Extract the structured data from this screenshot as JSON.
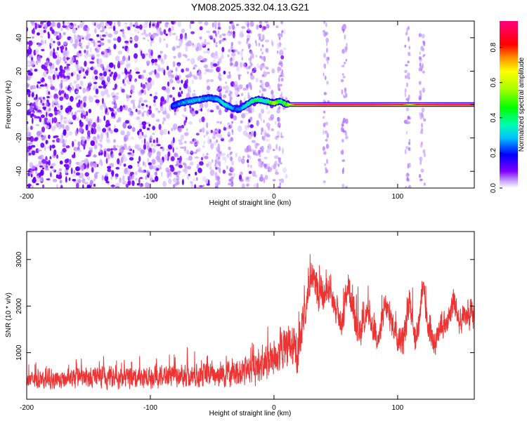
{
  "title": "YM08.2025.332.04.13.G21",
  "chart_data": [
    {
      "type": "heatmap",
      "title": "YM08.2025.332.04.13.G21",
      "xlabel": "Height of straight line (km)",
      "ylabel": "Frequency (Hz)",
      "xlim": [
        -200,
        162
      ],
      "ylim": [
        -50,
        50
      ],
      "xticks": [
        -200,
        -100,
        0,
        100
      ],
      "yticks": [
        -40,
        -20,
        0,
        20,
        40
      ],
      "colorbar": {
        "label": "Normalized spectral amplitude",
        "range": [
          0.0,
          0.95
        ],
        "ticks": [
          0.0,
          0.2,
          0.4,
          0.6,
          0.8
        ],
        "tick_labels": [
          "0.0",
          "0.2",
          "0.4",
          "0.6",
          "0.8"
        ]
      },
      "ridge": {
        "description": "dominant frequency ridge",
        "x": [
          -82,
          -75,
          -68,
          -60,
          -52,
          -45,
          -40,
          -34,
          -28,
          -22,
          -18,
          -12,
          -6,
          0,
          5,
          10,
          20,
          40,
          60,
          80,
          100,
          110,
          120,
          140,
          162
        ],
        "y": [
          -1,
          1,
          2,
          3,
          4,
          3,
          0,
          -2,
          -3,
          0,
          2,
          3,
          2,
          1,
          2,
          0,
          0,
          0,
          0,
          0,
          0,
          0,
          0,
          0,
          0
        ],
        "amplitude": [
          0.25,
          0.3,
          0.35,
          0.35,
          0.3,
          0.35,
          0.4,
          0.3,
          0.3,
          0.4,
          0.45,
          0.5,
          0.4,
          0.75,
          0.5,
          0.6,
          0.9,
          0.95,
          0.95,
          0.95,
          0.9,
          0.7,
          0.9,
          0.95,
          0.95
        ]
      },
      "noise_bands_x": [
        -45,
        -35,
        -20,
        -10,
        5,
        42,
        57,
        108,
        120
      ]
    },
    {
      "type": "line",
      "title": "",
      "xlabel": "Height of straight line (km)",
      "ylabel": "SNR (10 * v/v)",
      "xlim": [
        -200,
        162
      ],
      "ylim": [
        0,
        3600
      ],
      "xticks": [
        -200,
        -100,
        0,
        100
      ],
      "yticks": [
        1000,
        2000,
        3000
      ],
      "series": [
        {
          "name": "SNR",
          "color": "#ee3333",
          "envelope_x": [
            -200,
            -180,
            -160,
            -140,
            -120,
            -100,
            -80,
            -60,
            -40,
            -20,
            -10,
            0,
            10,
            20,
            25,
            30,
            35,
            40,
            45,
            50,
            55,
            60,
            65,
            70,
            75,
            80,
            85,
            90,
            95,
            100,
            105,
            110,
            115,
            120,
            125,
            130,
            135,
            140,
            145,
            150,
            155,
            162
          ],
          "mean": [
            420,
            400,
            440,
            480,
            460,
            470,
            500,
            520,
            560,
            620,
            720,
            900,
            1150,
            1050,
            1900,
            2650,
            2350,
            2150,
            2450,
            1900,
            1650,
            2500,
            1750,
            1450,
            1850,
            1550,
            1300,
            2000,
            1650,
            1350,
            1250,
            2100,
            1150,
            2400,
            1450,
            1200,
            1650,
            1550,
            2150,
            1600,
            1800,
            1750
          ],
          "spread": [
            250,
            260,
            270,
            300,
            300,
            320,
            330,
            360,
            400,
            450,
            500,
            600,
            650,
            700,
            500,
            450,
            550,
            500,
            450,
            450,
            500,
            450,
            550,
            450,
            400,
            450,
            450,
            450,
            400,
            450,
            500,
            450,
            450,
            500,
            400,
            400,
            450,
            400,
            450,
            400,
            400,
            450
          ]
        }
      ]
    }
  ]
}
